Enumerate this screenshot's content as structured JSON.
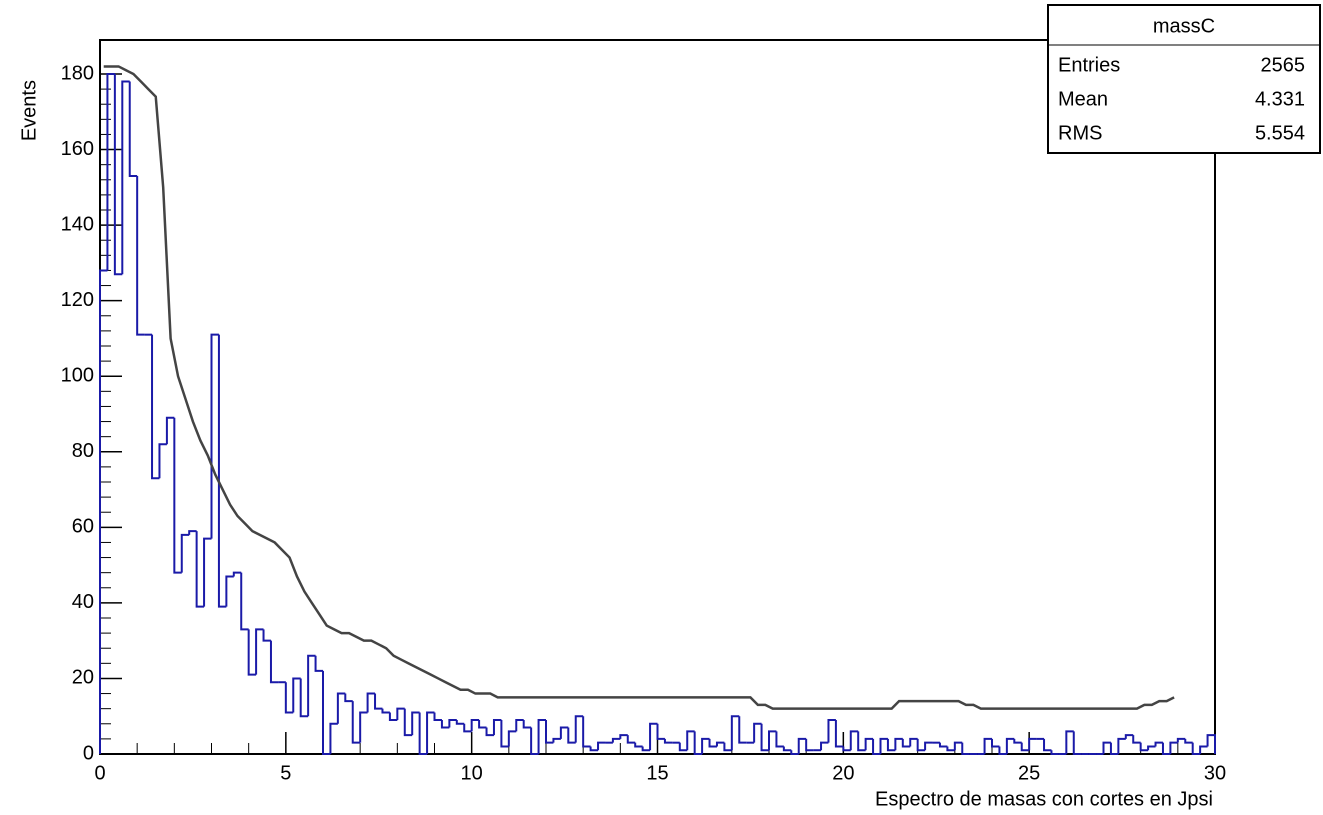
{
  "chart_data": {
    "type": "histogram",
    "ylabel": "Events",
    "xlabel": "Espectro de masas con cortes en Jpsi",
    "bins": [
      0,
      0.2,
      0.4,
      0.6,
      0.8,
      1,
      1.2,
      1.4,
      1.6,
      1.8,
      2,
      2.2,
      2.4,
      2.6,
      2.8,
      3,
      3.2,
      3.4,
      3.6,
      3.8,
      4,
      4.2,
      4.4,
      4.6,
      4.8,
      5,
      5.2,
      5.4,
      5.6,
      5.8,
      6,
      6.2,
      6.4,
      6.6,
      6.8,
      7,
      7.2,
      7.4,
      7.6,
      7.8,
      8,
      8.2,
      8.4,
      8.6,
      8.8,
      9,
      9.2,
      9.4,
      9.6,
      9.8,
      10,
      10.2,
      10.4,
      10.6,
      10.8,
      11,
      11.2,
      11.4,
      11.6,
      11.8,
      12,
      12.2,
      12.4,
      12.6,
      12.8,
      13,
      13.2,
      13.4,
      13.6,
      13.8,
      14,
      14.2,
      14.4,
      14.6,
      14.8,
      15,
      15.2,
      15.4,
      15.6,
      15.8,
      16,
      16.2,
      16.4,
      16.6,
      16.8,
      17,
      17.2,
      17.4,
      17.6,
      17.8,
      18,
      18.2,
      18.4,
      18.6,
      18.8,
      19,
      19.2,
      19.4,
      19.6,
      19.8,
      20,
      20.2,
      20.4,
      20.6,
      20.8,
      21,
      21.2,
      21.4,
      21.6,
      21.8,
      22,
      22.2,
      22.4,
      22.6,
      22.8,
      23,
      23.2,
      23.4,
      23.6,
      23.8,
      24,
      24.2,
      24.4,
      24.6,
      24.8,
      25,
      25.2,
      25.4,
      25.6,
      25.8,
      26,
      26.2,
      26.4,
      26.6,
      26.8,
      27,
      27.2,
      27.4,
      27.6,
      27.8,
      28,
      28.2,
      28.4,
      28.6,
      28.8,
      29,
      29.2,
      29.4,
      29.6,
      29.8,
      30
    ],
    "series": [
      {
        "color": "#1a1aa8",
        "style": "histogram",
        "values": [
          128,
          180,
          127,
          178,
          153,
          111,
          111,
          73,
          82,
          89,
          48,
          58,
          59,
          39,
          57,
          111,
          39,
          47,
          48,
          33,
          21,
          33,
          30,
          19,
          19,
          11,
          20,
          10,
          26,
          22,
          0,
          8,
          16,
          14,
          3,
          11,
          16,
          12,
          11,
          9,
          12,
          5,
          11,
          0,
          11,
          9,
          7,
          9,
          8,
          6,
          9,
          7,
          5,
          9,
          2,
          6,
          9,
          7,
          0,
          9,
          3,
          4,
          7,
          3,
          10,
          2,
          1,
          3,
          3,
          4,
          5,
          3,
          2,
          1,
          8,
          4,
          3,
          3,
          1,
          6,
          0,
          4,
          2,
          3,
          1,
          10,
          3,
          3,
          8,
          1,
          6,
          2,
          1,
          0,
          4,
          1,
          1,
          3,
          9,
          2,
          1,
          6,
          1,
          4,
          0,
          4,
          1,
          4,
          2,
          4,
          1,
          3,
          3,
          2,
          1,
          3,
          0,
          0,
          0,
          4,
          2,
          0,
          4,
          3,
          1,
          4,
          4,
          1,
          0,
          0,
          6,
          0,
          0,
          0,
          0,
          3,
          0,
          4,
          5,
          3,
          1,
          2,
          3,
          0,
          3,
          4,
          3,
          0,
          2,
          5
        ]
      },
      {
        "color": "#444444",
        "style": "line",
        "values": [
          182,
          182,
          182,
          181,
          180,
          178,
          176,
          174,
          150,
          110,
          100,
          94,
          88,
          83,
          79,
          74,
          70,
          66,
          63,
          61,
          59,
          58,
          57,
          56,
          54,
          52,
          47,
          43,
          40,
          37,
          34,
          33,
          32,
          32,
          31,
          30,
          30,
          29,
          28,
          26,
          25,
          24,
          23,
          22,
          21,
          20,
          19,
          18,
          17,
          17,
          16,
          16,
          16,
          15,
          15,
          15,
          15,
          15,
          15,
          15,
          15,
          15,
          15,
          15,
          15,
          15,
          15,
          15,
          15,
          15,
          15,
          15,
          15,
          15,
          15,
          15,
          15,
          15,
          15,
          15,
          15,
          15,
          15,
          15,
          15,
          15,
          15,
          15,
          13,
          13,
          12,
          12,
          12,
          12,
          12,
          12,
          12,
          12,
          12,
          12,
          12,
          12,
          12,
          12,
          12,
          12,
          12,
          14,
          14,
          14,
          14,
          14,
          14,
          14,
          14,
          14,
          13,
          13,
          12,
          12,
          12,
          12,
          12,
          12,
          12,
          12,
          12,
          12,
          12,
          12,
          12,
          12,
          12,
          12,
          12,
          12,
          12,
          12,
          12,
          12,
          13,
          13,
          14,
          14,
          15,
          null,
          null,
          null,
          null,
          null
        ]
      }
    ],
    "xlim": [
      0,
      30
    ],
    "xticks": [
      0,
      5,
      10,
      15,
      20,
      25,
      30
    ],
    "ylim": [
      0,
      189
    ],
    "yticks": [
      0,
      20,
      40,
      60,
      80,
      100,
      120,
      140,
      160,
      180
    ],
    "minor_divisions": 5,
    "stats": {
      "title": "massC",
      "rows": [
        {
          "label": "Entries",
          "value": 2565
        },
        {
          "label": "Mean",
          "value": 4.331
        },
        {
          "label": "RMS",
          "value": 5.554
        }
      ]
    }
  }
}
